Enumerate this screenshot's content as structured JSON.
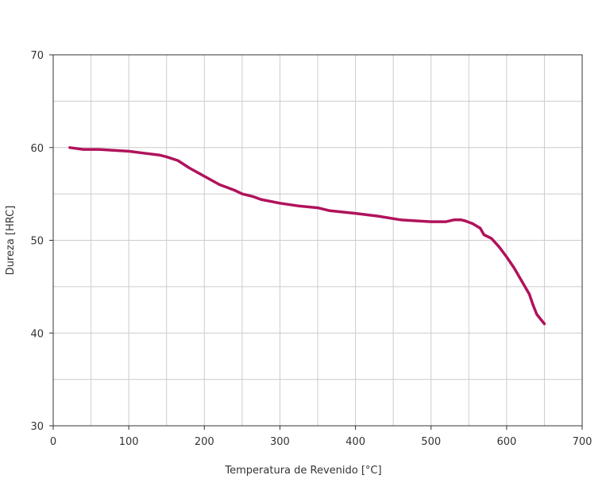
{
  "chart_data": {
    "type": "line",
    "title": "",
    "xlabel": "Temperatura de Revenido   [°C]",
    "ylabel": "Dureza [HRC]",
    "xlim": [
      0,
      700
    ],
    "ylim": [
      30,
      70
    ],
    "x_major_ticks": [
      0,
      100,
      200,
      300,
      400,
      500,
      600,
      700
    ],
    "x_minor_ticks": [
      50,
      150,
      250,
      350,
      450,
      550,
      650
    ],
    "y_major_ticks": [
      30,
      40,
      50,
      60,
      70
    ],
    "y_minor_ticks": [
      35,
      45,
      55,
      65
    ],
    "grid": true,
    "legend": "none",
    "line_color": "#B0125B",
    "grid_color": "#cccccc",
    "axis_color": "#333333",
    "series": [
      {
        "x": [
          22,
          40,
          60,
          80,
          100,
          120,
          140,
          150,
          165,
          180,
          200,
          220,
          240,
          250,
          265,
          275,
          300,
          325,
          350,
          365,
          400,
          430,
          460,
          480,
          500,
          520,
          530,
          540,
          545,
          555,
          565,
          570,
          580,
          590,
          600,
          610,
          620,
          630,
          635,
          640,
          650
        ],
        "values": [
          60.0,
          59.8,
          59.8,
          59.7,
          59.6,
          59.4,
          59.2,
          59.0,
          58.6,
          57.8,
          56.9,
          56.0,
          55.4,
          55.0,
          54.7,
          54.4,
          54.0,
          53.7,
          53.5,
          53.2,
          52.9,
          52.6,
          52.2,
          52.1,
          52.0,
          52.0,
          52.2,
          52.2,
          52.1,
          51.8,
          51.3,
          50.6,
          50.2,
          49.3,
          48.2,
          47.0,
          45.6,
          44.2,
          43.0,
          42.0,
          41.0
        ]
      }
    ]
  }
}
